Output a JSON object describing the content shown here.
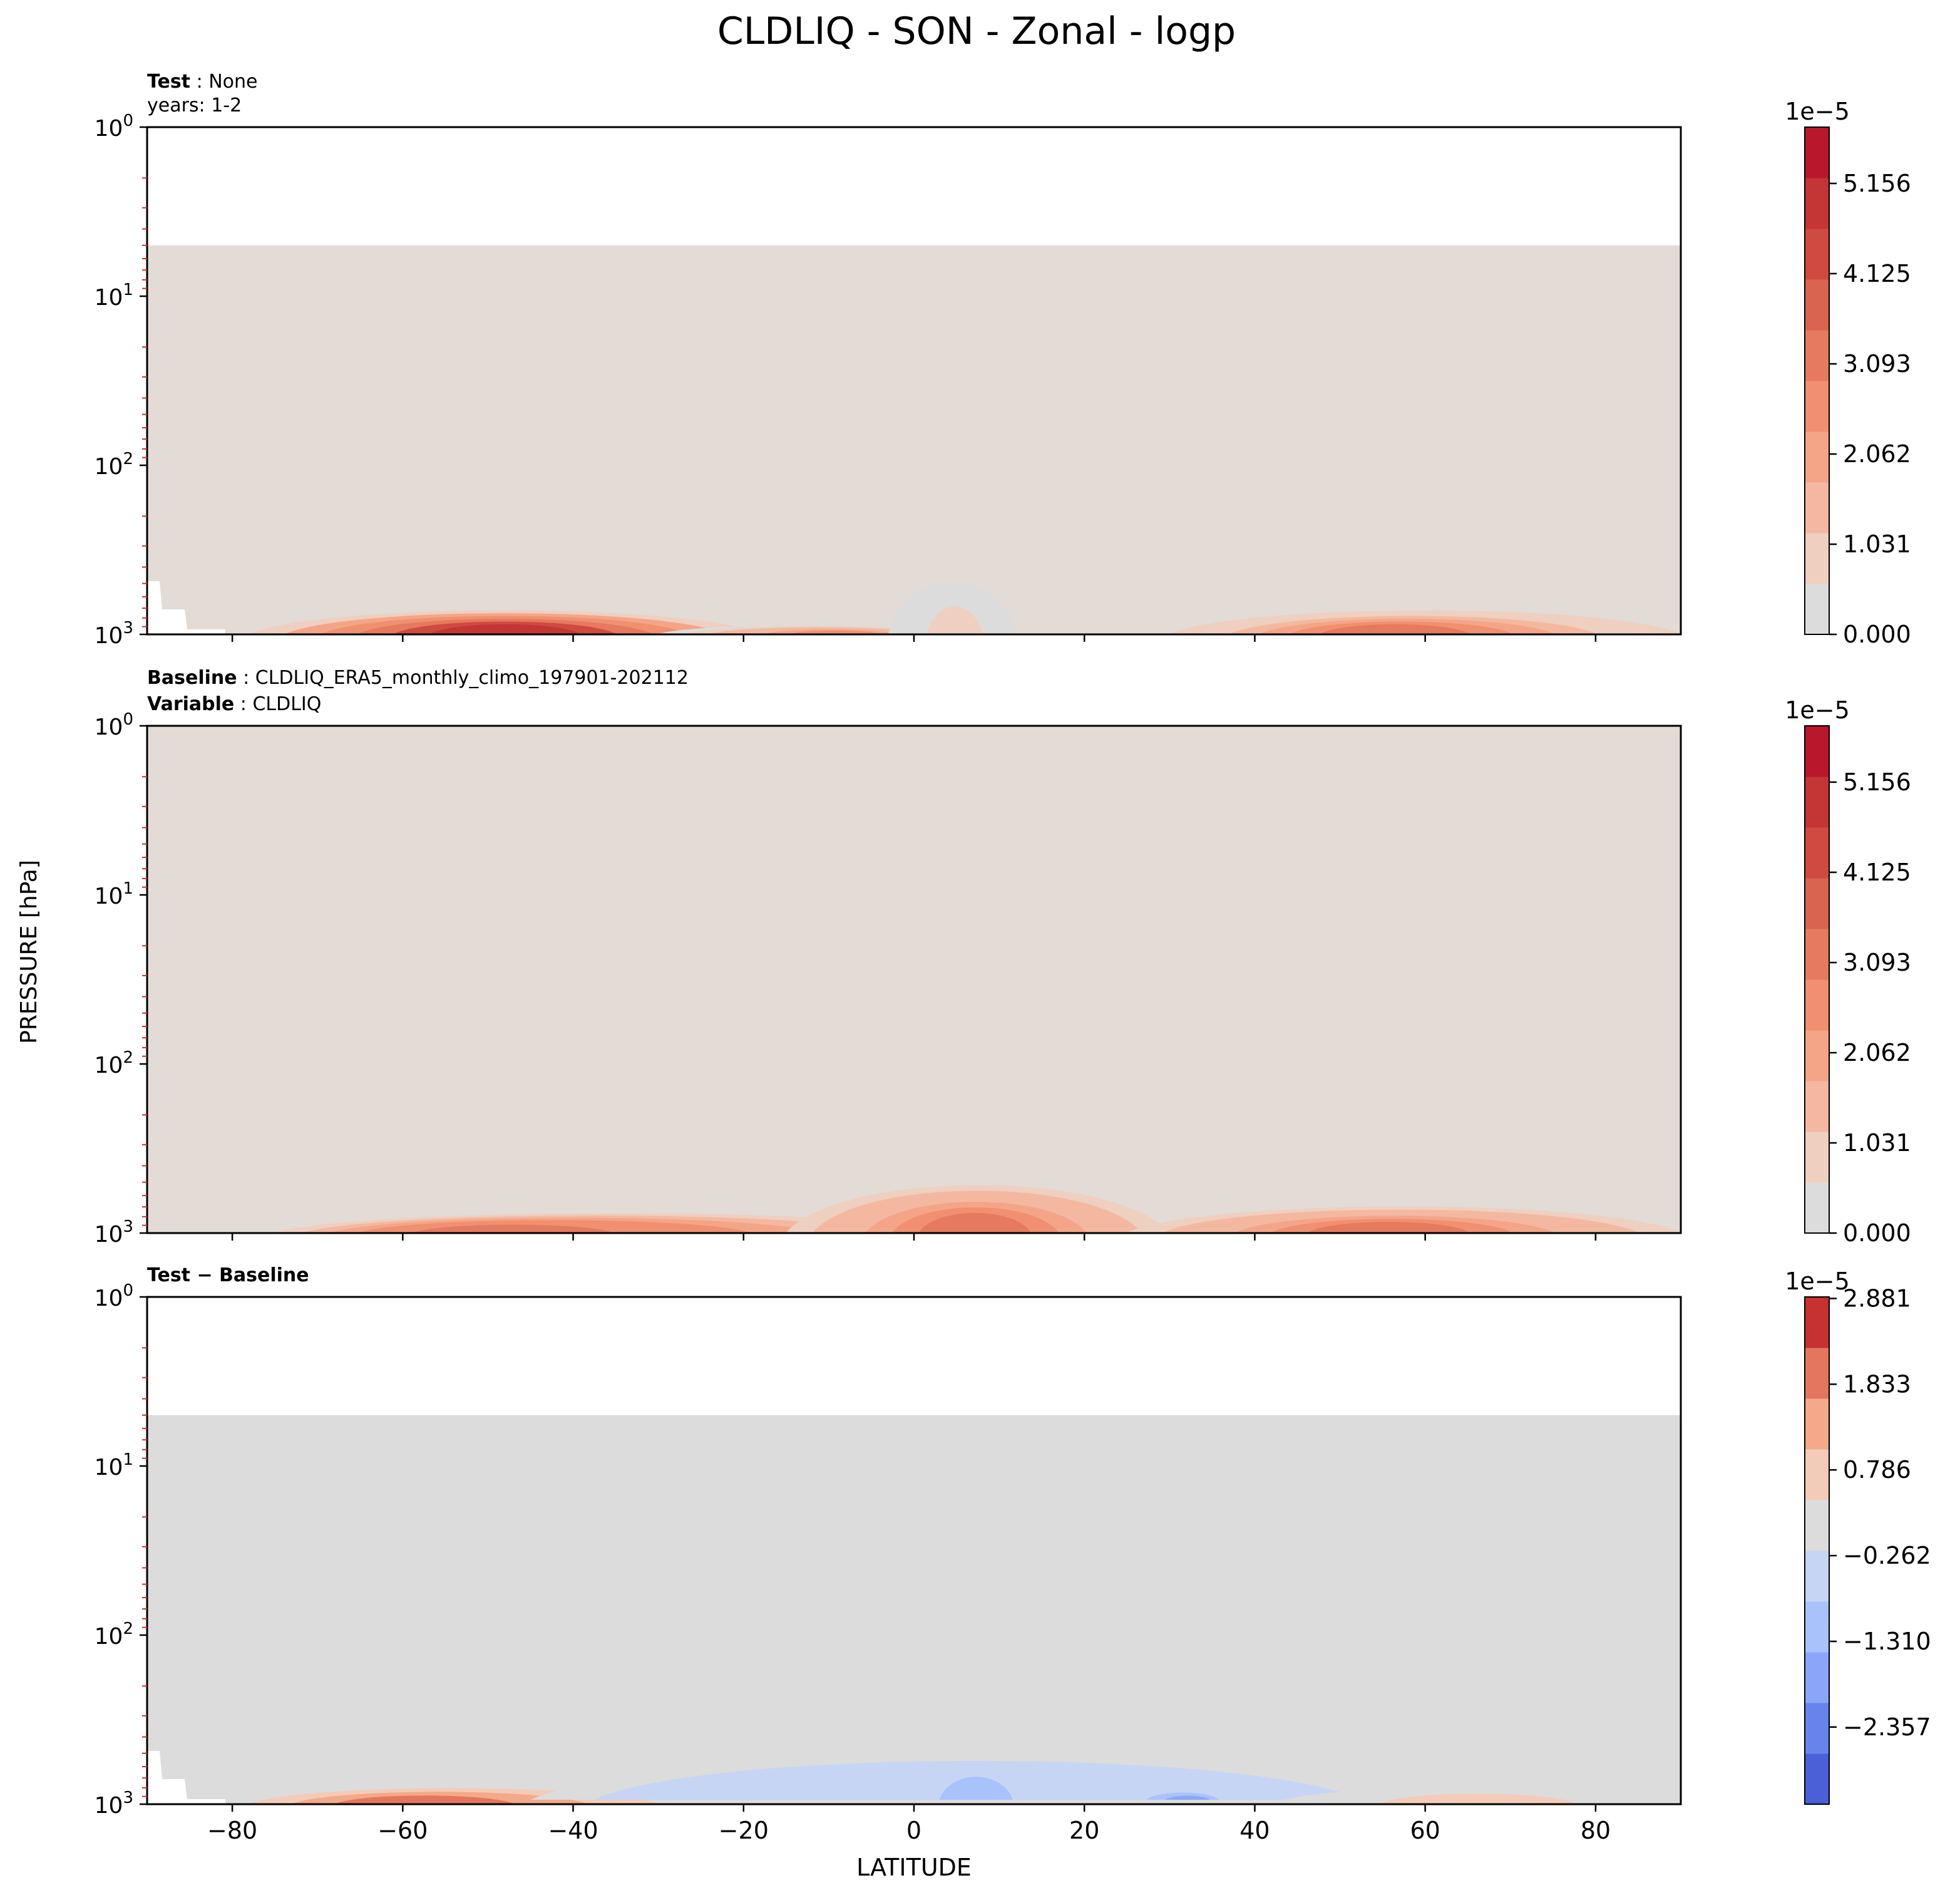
{
  "figure": {
    "title": "CLDLIQ - SON - Zonal - logp",
    "ylabel": "PRESSURE [hPa]",
    "xlabel": "LATITUDE"
  },
  "colors": {
    "panel_fill": "#e2dbd6",
    "diff_fill": "#dcdcdc",
    "axis": "#000000",
    "minor_tick": "#d62728",
    "seq_cmap": [
      "#dcdcdc",
      "#efcfbf",
      "#f4b8a0",
      "#f5a587",
      "#f09070",
      "#e57a5e",
      "#d96450",
      "#cf4a40",
      "#c43536",
      "#b9172c"
    ],
    "div_cmap": [
      "#4b5fd6",
      "#6784ec",
      "#8ba6f8",
      "#a9c2fb",
      "#c6d5f4",
      "#dcdcdc",
      "#f3cbb8",
      "#f3a98a",
      "#e4765d",
      "#c53231"
    ]
  },
  "chart_data": [
    {
      "type": "heatmap",
      "panel": "test",
      "header": [
        {
          "bold": "Test",
          "sep": " : ",
          "text": "None"
        },
        {
          "bold": "",
          "sep": "",
          "text": "years: 1-2"
        }
      ],
      "xlim": [
        -90,
        90
      ],
      "ylim_hpa": [
        1000,
        1
      ],
      "y_scale": "log",
      "x_ticks": [
        -80,
        -60,
        -40,
        -20,
        0,
        20,
        40,
        60,
        80
      ],
      "y_ticks": [
        {
          "base": "10",
          "exp": "0"
        },
        {
          "base": "10",
          "exp": "1"
        },
        {
          "base": "10",
          "exp": "2"
        },
        {
          "base": "10",
          "exp": "3"
        }
      ],
      "data_top_hpa": 5,
      "colorbar": {
        "multiplier": "1e−5",
        "ticks": [
          "0.000",
          "1.031",
          "2.062",
          "3.093",
          "4.125",
          "5.156"
        ],
        "range": [
          0,
          5.8
        ]
      },
      "features": [
        {
          "lat_from": -78,
          "lat_to": -18,
          "lat_peak": -48,
          "hpa_top": 650,
          "value": 5.6
        },
        {
          "lat_from": -30,
          "lat_to": 5,
          "lat_peak": -8,
          "hpa_top": 850,
          "value": 2.8
        },
        {
          "lat_from": -3,
          "lat_to": 12,
          "lat_peak": 5,
          "hpa_top": 390,
          "value": 0.9
        },
        {
          "lat_from": 30,
          "lat_to": 90,
          "lat_peak": 55,
          "hpa_top": 650,
          "value": 3.4
        }
      ]
    },
    {
      "type": "heatmap",
      "panel": "baseline",
      "header": [
        {
          "bold": "Baseline",
          "sep": " : ",
          "text": "CLDLIQ_ERA5_monthly_climo_197901-202112"
        },
        {
          "bold": "Variable",
          "sep": " : ",
          "text": "CLDLIQ"
        }
      ],
      "xlim": [
        -90,
        90
      ],
      "ylim_hpa": [
        1000,
        1
      ],
      "y_scale": "log",
      "x_ticks": [
        -80,
        -60,
        -40,
        -20,
        0,
        20,
        40,
        60,
        80
      ],
      "y_ticks": [
        {
          "base": "10",
          "exp": "0"
        },
        {
          "base": "10",
          "exp": "1"
        },
        {
          "base": "10",
          "exp": "2"
        },
        {
          "base": "10",
          "exp": "3"
        }
      ],
      "data_top_hpa": 1,
      "colorbar": {
        "multiplier": "1e−5",
        "ticks": [
          "0.000",
          "1.031",
          "2.062",
          "3.093",
          "4.125",
          "5.156"
        ],
        "range": [
          0,
          5.8
        ]
      },
      "features": [
        {
          "lat_from": -75,
          "lat_to": 5,
          "lat_peak": -52,
          "hpa_top": 700,
          "value": 3.9
        },
        {
          "lat_from": -15,
          "lat_to": 30,
          "lat_peak": 7,
          "hpa_top": 420,
          "value": 3.6
        },
        {
          "lat_from": 25,
          "lat_to": 90,
          "lat_peak": 55,
          "hpa_top": 620,
          "value": 3.5
        }
      ]
    },
    {
      "type": "heatmap",
      "panel": "difference",
      "header": [
        {
          "bold": "Test − Baseline",
          "sep": "",
          "text": ""
        }
      ],
      "xlim": [
        -90,
        90
      ],
      "ylim_hpa": [
        1000,
        1
      ],
      "y_scale": "log",
      "x_ticks": [
        -80,
        -60,
        -40,
        -20,
        0,
        20,
        40,
        60,
        80
      ],
      "y_ticks": [
        {
          "base": "10",
          "exp": "0"
        },
        {
          "base": "10",
          "exp": "1"
        },
        {
          "base": "10",
          "exp": "2"
        },
        {
          "base": "10",
          "exp": "3"
        }
      ],
      "data_top_hpa": 5,
      "colorbar": {
        "multiplier": "1e−5",
        "ticks": [
          "2.881",
          "1.833",
          "0.786",
          "−0.262",
          "−1.310",
          "−2.357"
        ],
        "range": [
          -3.3,
          2.9
        ]
      },
      "features": [
        {
          "lat_from": -78,
          "lat_to": -30,
          "lat_peak": -60,
          "hpa_top": 750,
          "value": 2.6
        },
        {
          "lat_from": -45,
          "lat_to": 60,
          "lat_peak": 7,
          "hpa_top": 420,
          "value": -0.8
        },
        {
          "lat_from": 0,
          "lat_to": 15,
          "lat_peak": 7,
          "hpa_top": 480,
          "value": -1.4
        },
        {
          "lat_from": 25,
          "lat_to": 37,
          "lat_peak": 33,
          "hpa_top": 780,
          "value": -2.0
        },
        {
          "lat_from": 42,
          "lat_to": 82,
          "lat_peak": 72,
          "hpa_top": 750,
          "value": 0.8
        }
      ]
    }
  ]
}
